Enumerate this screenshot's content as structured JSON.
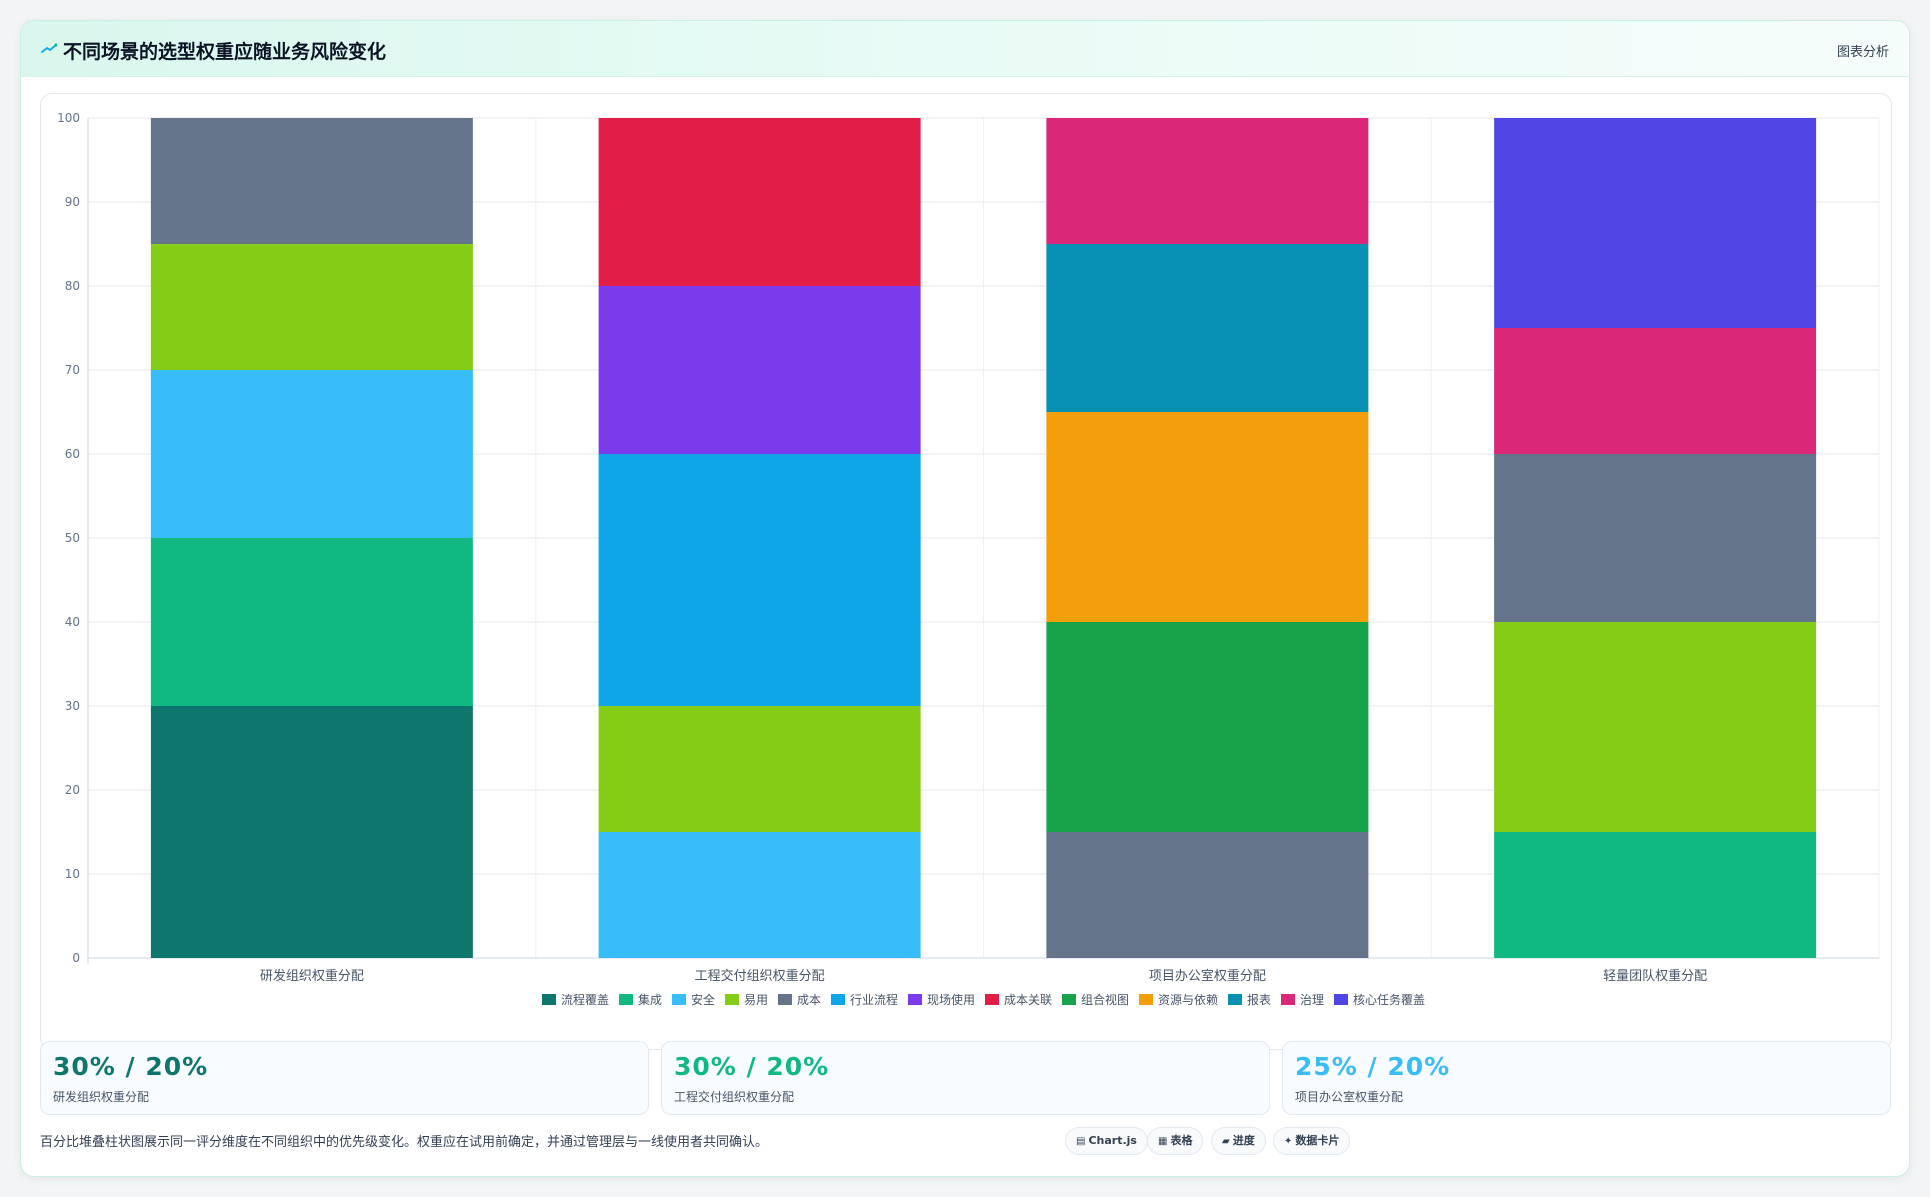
{
  "header": {
    "title": "不同场景的选型权重应随业务风险变化",
    "tag": "图表分析",
    "icon": "chart-sparkle-icon"
  },
  "chart_data": {
    "type": "bar",
    "stacked": true,
    "categories": [
      "研发组织权重分配",
      "工程交付组织权重分配",
      "项目办公室权重分配",
      "轻量团队权重分配"
    ],
    "ylim": [
      0,
      100
    ],
    "yticks": [
      0,
      10,
      20,
      30,
      40,
      50,
      60,
      70,
      80,
      90,
      100
    ],
    "grid": true,
    "legend_position": "bottom",
    "series": [
      {
        "name": "流程覆盖",
        "color": "#0f766e",
        "values": [
          30,
          0,
          0,
          0
        ]
      },
      {
        "name": "集成",
        "color": "#10b981",
        "values": [
          20,
          0,
          0,
          15
        ]
      },
      {
        "name": "安全",
        "color": "#38bdf8",
        "values": [
          20,
          15,
          0,
          0
        ]
      },
      {
        "name": "易用",
        "color": "#84cc16",
        "values": [
          15,
          15,
          0,
          25
        ]
      },
      {
        "name": "成本",
        "color": "#64748b",
        "values": [
          15,
          0,
          15,
          20
        ]
      },
      {
        "name": "行业流程",
        "color": "#0ea5e9",
        "values": [
          0,
          30,
          0,
          0
        ]
      },
      {
        "name": "现场使用",
        "color": "#7c3aed",
        "values": [
          0,
          20,
          0,
          0
        ]
      },
      {
        "name": "成本关联",
        "color": "#e11d48",
        "values": [
          0,
          20,
          0,
          0
        ]
      },
      {
        "name": "组合视图",
        "color": "#16a34a",
        "values": [
          0,
          0,
          25,
          0
        ]
      },
      {
        "name": "资源与依赖",
        "color": "#f59e0b",
        "values": [
          0,
          0,
          25,
          0
        ]
      },
      {
        "name": "报表",
        "color": "#0891b2",
        "values": [
          0,
          0,
          20,
          0
        ]
      },
      {
        "name": "治理",
        "color": "#db2777",
        "values": [
          0,
          0,
          15,
          15
        ]
      },
      {
        "name": "核心任务覆盖",
        "color": "#4f46e5",
        "values": [
          0,
          0,
          0,
          25
        ]
      }
    ]
  },
  "stats": [
    {
      "value": "30% / 20%",
      "label": "研发组织权重分配",
      "color": "#0f766e"
    },
    {
      "value": "30% / 20%",
      "label": "工程交付组织权重分配",
      "color": "#10b981"
    },
    {
      "value": "25% / 20%",
      "label": "项目办公室权重分配",
      "color": "#38bdf8"
    }
  ],
  "footer": {
    "note": "百分比堆叠柱状图展示同一评分维度在不同组织中的优先级变化。权重应在试用前确定，并通过管理层与一线使用者共同确认。",
    "chips": [
      {
        "icon": "▤",
        "label": "Chart.js"
      },
      {
        "icon": "▦",
        "label": "表格"
      },
      {
        "icon": "▰",
        "label": "进度"
      },
      {
        "icon": "✦",
        "label": "数据卡片"
      }
    ]
  }
}
